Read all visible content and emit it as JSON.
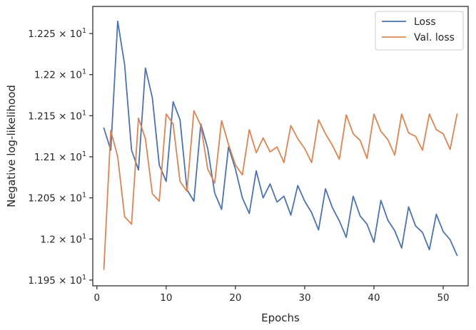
{
  "chart_data": {
    "type": "line",
    "xlabel": "Epochs",
    "ylabel": "Negative log-likelihood",
    "xlim": [
      -0.6,
      53.6
    ],
    "ylim": [
      11.943,
      12.283
    ],
    "x_ticks": [
      0,
      10,
      20,
      30,
      40,
      50
    ],
    "x_tick_labels": [
      "0",
      "10",
      "20",
      "30",
      "40",
      "50"
    ],
    "y_ticks": [
      11.95,
      12.0,
      12.05,
      12.1,
      12.15,
      12.2,
      12.25
    ],
    "y_tick_labels": [
      {
        "mantissa": "1.195",
        "base": "10",
        "exp": "1"
      },
      {
        "mantissa": "1.2",
        "base": "10",
        "exp": "1"
      },
      {
        "mantissa": "1.205",
        "base": "10",
        "exp": "1"
      },
      {
        "mantissa": "1.21",
        "base": "10",
        "exp": "1"
      },
      {
        "mantissa": "1.215",
        "base": "10",
        "exp": "1"
      },
      {
        "mantissa": "1.22",
        "base": "10",
        "exp": "1"
      },
      {
        "mantissa": "1.225",
        "base": "10",
        "exp": "1"
      }
    ],
    "grid": false,
    "legend_position": "top-right",
    "x": [
      1,
      2,
      3,
      4,
      5,
      6,
      7,
      8,
      9,
      10,
      11,
      12,
      13,
      14,
      15,
      16,
      17,
      18,
      19,
      20,
      21,
      22,
      23,
      24,
      25,
      26,
      27,
      28,
      29,
      30,
      31,
      32,
      33,
      34,
      35,
      36,
      37,
      38,
      39,
      40,
      41,
      42,
      43,
      44,
      45,
      46,
      47,
      48,
      49,
      50,
      51,
      52
    ],
    "series": [
      {
        "name": "Loss",
        "color": "#4c72b0",
        "values": [
          12.135,
          12.108,
          12.265,
          12.212,
          12.108,
          12.084,
          12.208,
          12.172,
          12.09,
          12.07,
          12.167,
          12.145,
          12.06,
          12.046,
          12.14,
          12.11,
          12.056,
          12.036,
          12.112,
          12.085,
          12.05,
          12.031,
          12.083,
          12.05,
          12.067,
          12.045,
          12.052,
          12.029,
          12.065,
          12.046,
          12.032,
          12.011,
          12.061,
          12.038,
          12.022,
          12.002,
          12.052,
          12.028,
          12.018,
          11.996,
          12.047,
          12.023,
          12.01,
          11.989,
          12.039,
          12.016,
          12.008,
          11.987,
          12.03,
          12.009,
          11.999,
          11.98
        ]
      },
      {
        "name": "Val. loss",
        "color": "#dd8452",
        "values": [
          11.963,
          12.132,
          12.1,
          12.027,
          12.018,
          12.147,
          12.122,
          12.055,
          12.046,
          12.152,
          12.14,
          12.07,
          12.058,
          12.156,
          12.138,
          12.085,
          12.068,
          12.144,
          12.115,
          12.09,
          12.078,
          12.133,
          12.105,
          12.123,
          12.106,
          12.112,
          12.093,
          12.138,
          12.122,
          12.11,
          12.093,
          12.145,
          12.128,
          12.114,
          12.097,
          12.151,
          12.128,
          12.12,
          12.098,
          12.152,
          12.131,
          12.121,
          12.102,
          12.152,
          12.129,
          12.125,
          12.108,
          12.152,
          12.133,
          12.128,
          12.109,
          12.152
        ]
      }
    ]
  }
}
